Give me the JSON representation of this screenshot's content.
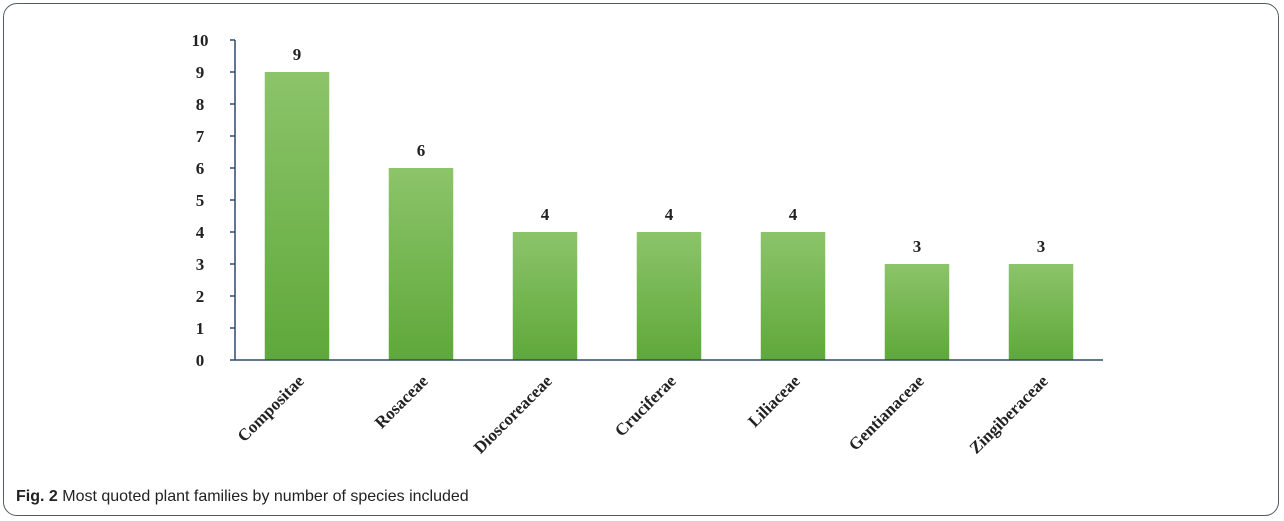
{
  "caption": {
    "fig_label": "Fig. 2",
    "text": "Most quoted plant families by number of species included"
  },
  "colors": {
    "bar_top": "#8cc46a",
    "bar_bottom": "#5fa83a",
    "axis": "#2f4b6e"
  },
  "chart_data": {
    "type": "bar",
    "title": "",
    "xlabel": "",
    "ylabel": "",
    "categories": [
      "Compositae",
      "Rosaceae",
      "Dioscoreaceae",
      "Cruciferae",
      "Liliaceae",
      "Gentianaceae",
      "Zingiberaceae"
    ],
    "values": [
      9,
      6,
      4,
      4,
      4,
      3,
      3
    ],
    "data_labels": [
      "9",
      "6",
      "4",
      "4",
      "4",
      "3",
      "3"
    ],
    "ylim": [
      0,
      10
    ],
    "yticks": [
      0,
      1,
      2,
      3,
      4,
      5,
      6,
      7,
      8,
      9,
      10
    ],
    "grid": false,
    "legend": "none"
  }
}
